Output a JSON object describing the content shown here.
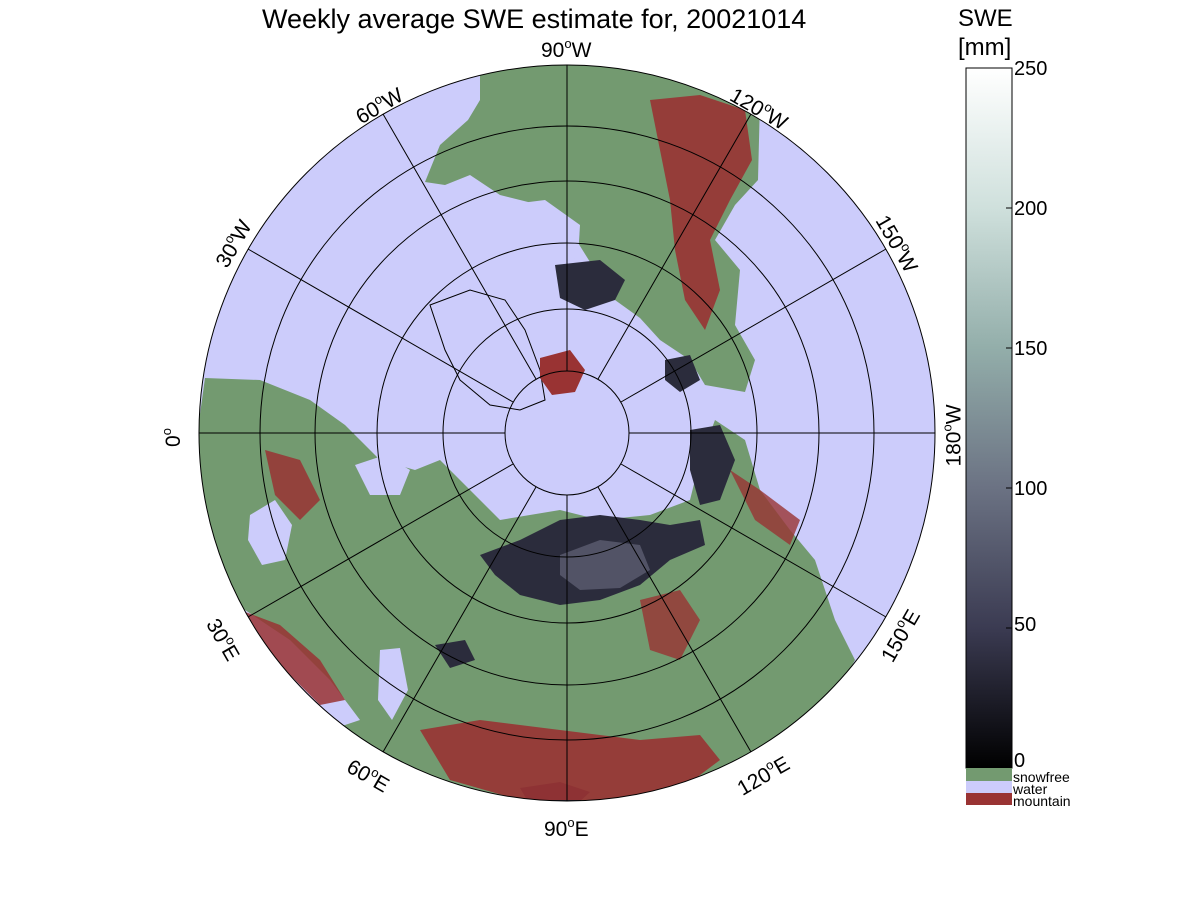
{
  "title": "Weekly average SWE estimate for, 20021014",
  "colorbar": {
    "title_line1": "SWE",
    "title_line2": "[mm]",
    "ticks": [
      "250",
      "200",
      "150",
      "100",
      "50",
      "0"
    ],
    "range": [
      0,
      250
    ],
    "categories": [
      {
        "label": "snowfree",
        "color": "#739a70"
      },
      {
        "label": "water",
        "color": "#ccccfb"
      },
      {
        "label": "mountain",
        "color": "#993333"
      }
    ]
  },
  "lon_labels": [
    {
      "id": "90W",
      "text": "90",
      "unit": "W"
    },
    {
      "id": "120W",
      "text": "120",
      "unit": "W"
    },
    {
      "id": "150W",
      "text": "150",
      "unit": "W"
    },
    {
      "id": "180W",
      "text": "180",
      "unit": "W"
    },
    {
      "id": "150E",
      "text": "150",
      "unit": "E"
    },
    {
      "id": "120E",
      "text": "120",
      "unit": "E"
    },
    {
      "id": "90E",
      "text": "90",
      "unit": "E"
    },
    {
      "id": "60E",
      "text": "60",
      "unit": "E"
    },
    {
      "id": "30E",
      "text": "30",
      "unit": "E"
    },
    {
      "id": "0",
      "text": "0",
      "unit": ""
    },
    {
      "id": "30W",
      "text": "30",
      "unit": "W"
    },
    {
      "id": "60W",
      "text": "60",
      "unit": "W"
    }
  ],
  "colors": {
    "water": "#ccccfb",
    "snowfree": "#739a70",
    "mountain": "#993333",
    "snow_low": "#2b2c3c",
    "snow_mid": "#525366"
  }
}
